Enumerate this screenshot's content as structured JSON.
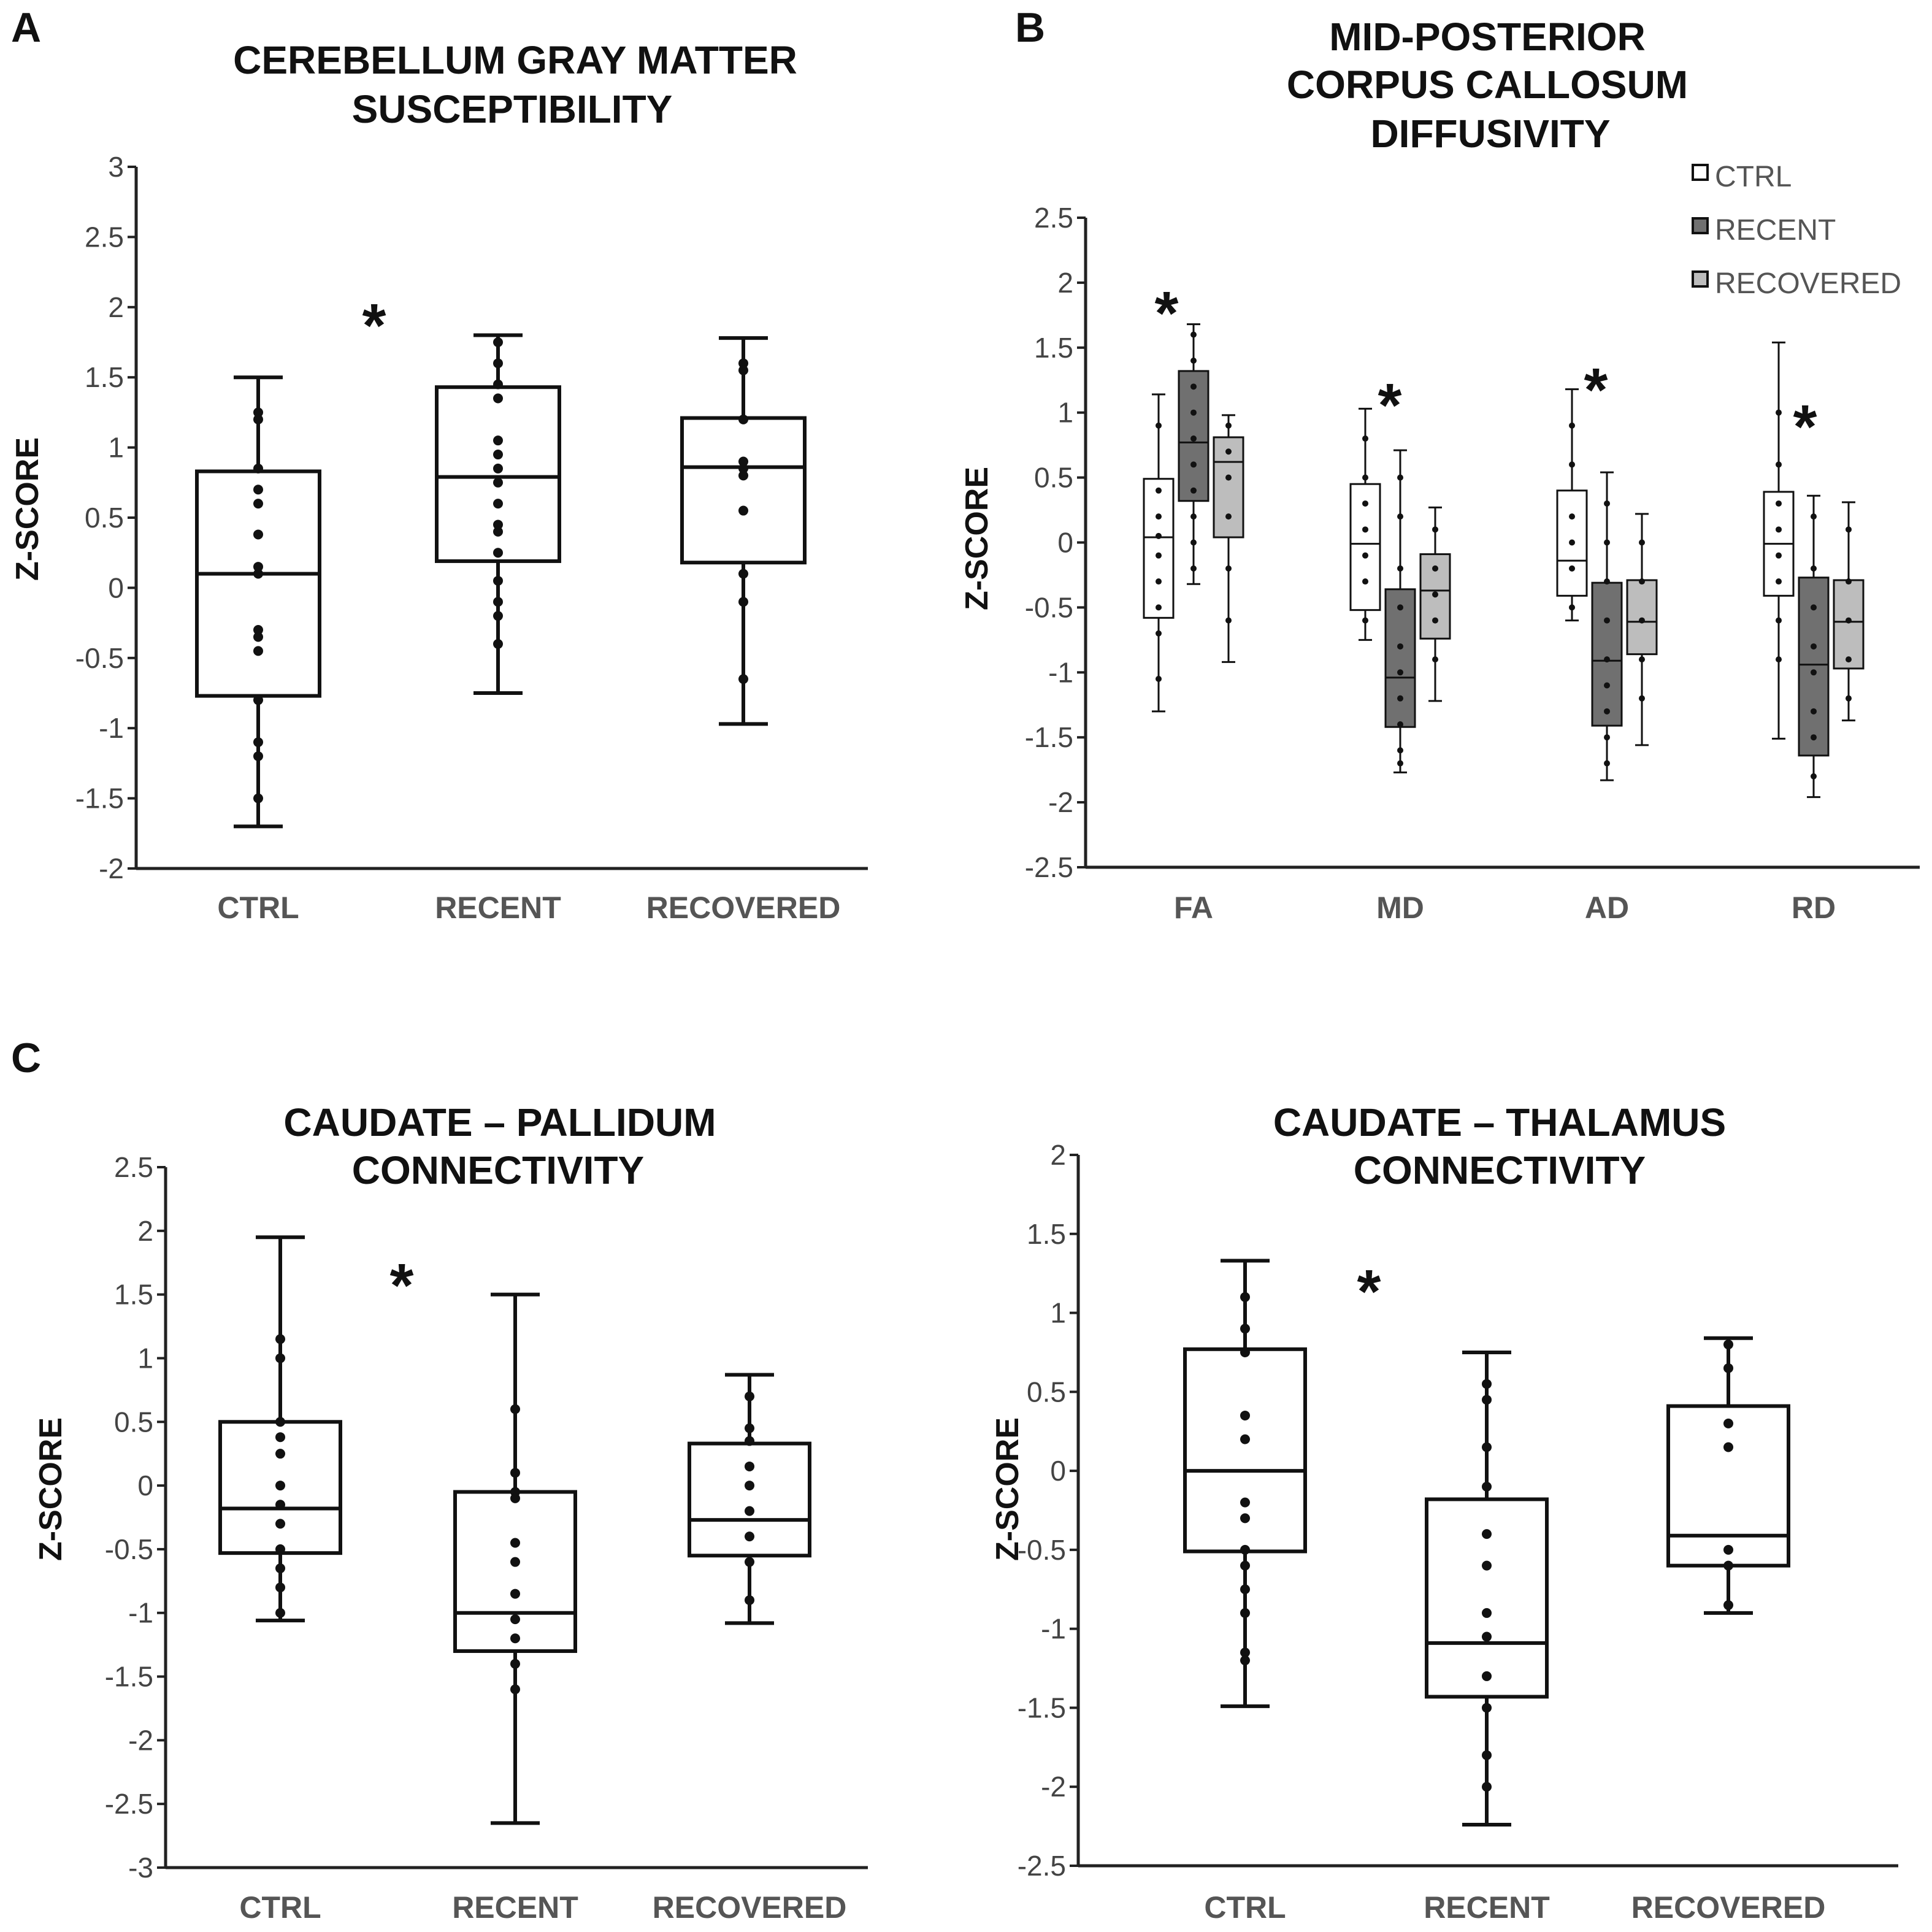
{
  "panels": [
    "A",
    "B",
    "C"
  ],
  "chart_data": [
    {
      "type": "box",
      "panel": "A",
      "title_lines": [
        "CEREBELLUM GRAY MATTER",
        "SUSCEPTIBILITY"
      ],
      "ylabel": "Z-SCORE",
      "ylim": [
        -2,
        3
      ],
      "yticks": [
        3,
        2.5,
        2,
        1.5,
        1,
        0.5,
        0,
        -0.5,
        -1,
        -1.5,
        -2
      ],
      "ytick_labels": [
        "3",
        "2.5",
        "2",
        "1.5",
        "1",
        "0.5",
        "0",
        "-0.5",
        "-1",
        "-1.5",
        "-2"
      ],
      "categories": [
        "CTRL",
        "RECENT",
        "RECOVERED"
      ],
      "significance": [
        "*"
      ],
      "boxes": [
        {
          "min": -1.7,
          "q1": -0.77,
          "median": 0.1,
          "q3": 0.83,
          "max": 1.5,
          "points": [
            1.25,
            1.2,
            0.85,
            0.7,
            0.6,
            0.38,
            0.15,
            0.1,
            -0.3,
            -0.35,
            -0.45,
            -0.8,
            -1.1,
            -1.2,
            -1.5
          ]
        },
        {
          "min": -0.75,
          "q1": 0.19,
          "median": 0.79,
          "q3": 1.43,
          "max": 1.8,
          "points": [
            1.75,
            1.6,
            1.45,
            1.35,
            1.05,
            0.95,
            0.85,
            0.75,
            0.6,
            0.45,
            0.4,
            0.25,
            0.05,
            -0.1,
            -0.2,
            -0.4
          ]
        },
        {
          "min": -0.97,
          "q1": 0.18,
          "median": 0.86,
          "q3": 1.21,
          "max": 1.78,
          "points": [
            1.6,
            1.55,
            1.2,
            0.9,
            0.85,
            0.8,
            0.55,
            0.1,
            -0.1,
            -0.65
          ]
        }
      ]
    },
    {
      "type": "grouped-box",
      "panel": "B",
      "title_lines": [
        "MID-POSTERIOR",
        "CORPUS CALLOSUM",
        "DIFFUSIVITY"
      ],
      "ylabel": "Z-SCORE",
      "ylim": [
        -2.5,
        2.5
      ],
      "yticks": [
        2.5,
        2,
        1.5,
        1,
        0.5,
        0,
        -0.5,
        -1,
        -1.5,
        -2,
        -2.5
      ],
      "ytick_labels": [
        "2.5",
        "2",
        "1.5",
        "1",
        "0.5",
        "0",
        "-0.5",
        "-1",
        "-1.5",
        "-2",
        "-2.5"
      ],
      "categories": [
        "FA",
        "MD",
        "AD",
        "RD"
      ],
      "legend": [
        "CTRL",
        "RECENT",
        "RECOVERED"
      ],
      "series_colors": [
        "#ffffff",
        "#707070",
        "#bdbdbd"
      ],
      "significance": [
        "*",
        "*",
        "*",
        "*"
      ],
      "groups": [
        [
          {
            "min": -1.3,
            "q1": -0.58,
            "median": 0.04,
            "q3": 0.49,
            "max": 1.14,
            "points": [
              0.9,
              0.4,
              0.2,
              0.05,
              -0.1,
              -0.3,
              -0.5,
              -0.7,
              -1.05
            ]
          },
          {
            "min": -0.32,
            "q1": 0.32,
            "median": 0.77,
            "q3": 1.32,
            "max": 1.68,
            "points": [
              1.6,
              1.4,
              1.2,
              1.0,
              0.8,
              0.6,
              0.4,
              0.2,
              0.0,
              -0.2
            ]
          },
          {
            "min": -0.92,
            "q1": 0.04,
            "median": 0.62,
            "q3": 0.81,
            "max": 0.98,
            "points": [
              0.9,
              0.7,
              0.5,
              0.2,
              -0.2,
              -0.6
            ]
          }
        ],
        [
          {
            "min": -0.75,
            "q1": -0.52,
            "median": -0.01,
            "q3": 0.45,
            "max": 1.03,
            "points": [
              0.8,
              0.5,
              0.3,
              0.1,
              -0.1,
              -0.3,
              -0.6
            ]
          },
          {
            "min": -1.77,
            "q1": -1.42,
            "median": -1.04,
            "q3": -0.36,
            "max": 0.71,
            "points": [
              0.5,
              0.2,
              -0.2,
              -0.5,
              -0.8,
              -1.0,
              -1.2,
              -1.4,
              -1.6,
              -1.7
            ]
          },
          {
            "min": -1.22,
            "q1": -0.74,
            "median": -0.37,
            "q3": -0.09,
            "max": 0.27,
            "points": [
              0.1,
              -0.2,
              -0.4,
              -0.6,
              -0.9
            ]
          }
        ],
        [
          {
            "min": -0.6,
            "q1": -0.41,
            "median": -0.14,
            "q3": 0.4,
            "max": 1.18,
            "points": [
              0.9,
              0.6,
              0.2,
              0.0,
              -0.2,
              -0.5
            ]
          },
          {
            "min": -1.83,
            "q1": -1.41,
            "median": -0.91,
            "q3": -0.31,
            "max": 0.54,
            "points": [
              0.3,
              0.0,
              -0.3,
              -0.6,
              -0.9,
              -1.1,
              -1.3,
              -1.5,
              -1.7
            ]
          },
          {
            "min": -1.56,
            "q1": -0.86,
            "median": -0.61,
            "q3": -0.29,
            "max": 0.22,
            "points": [
              0.0,
              -0.3,
              -0.6,
              -0.9,
              -1.2
            ]
          }
        ],
        [
          {
            "min": -1.51,
            "q1": -0.41,
            "median": -0.01,
            "q3": 0.39,
            "max": 1.54,
            "points": [
              1.0,
              0.6,
              0.3,
              0.1,
              -0.1,
              -0.3,
              -0.6,
              -0.9
            ]
          },
          {
            "min": -1.96,
            "q1": -1.64,
            "median": -0.94,
            "q3": -0.27,
            "max": 0.36,
            "points": [
              0.2,
              -0.2,
              -0.5,
              -0.8,
              -1.0,
              -1.3,
              -1.5,
              -1.8
            ]
          },
          {
            "min": -1.37,
            "q1": -0.97,
            "median": -0.61,
            "q3": -0.29,
            "max": 0.31,
            "points": [
              0.1,
              -0.3,
              -0.6,
              -0.9,
              -1.2
            ]
          }
        ]
      ]
    },
    {
      "type": "box",
      "panel": "C",
      "title_lines": [
        "CAUDATE – PALLIDUM",
        "CONNECTIVITY"
      ],
      "ylabel": "Z-SCORE",
      "ylim": [
        -3,
        2.5
      ],
      "yticks": [
        2.5,
        2,
        1.5,
        1,
        0.5,
        0,
        -0.5,
        -1,
        -1.5,
        -2,
        -2.5,
        -3
      ],
      "ytick_labels": [
        "2.5",
        "2",
        "1.5",
        "1",
        "0.5",
        "0",
        "-0.5",
        "-1",
        "-1.5",
        "-2",
        "-2.5",
        "-3"
      ],
      "categories": [
        "CTRL",
        "RECENT",
        "RECOVERED"
      ],
      "significance": [
        "*"
      ],
      "boxes": [
        {
          "min": -1.06,
          "q1": -0.53,
          "median": -0.18,
          "q3": 0.5,
          "max": 1.95,
          "points": [
            1.15,
            1.0,
            0.5,
            0.38,
            0.25,
            0.0,
            -0.15,
            -0.3,
            -0.5,
            -0.65,
            -0.8,
            -1.0
          ]
        },
        {
          "min": -2.65,
          "q1": -1.3,
          "median": -1.0,
          "q3": -0.05,
          "max": 1.5,
          "points": [
            0.6,
            0.1,
            -0.05,
            -0.1,
            -0.45,
            -0.6,
            -0.85,
            -1.05,
            -1.2,
            -1.4,
            -1.6
          ]
        },
        {
          "min": -1.08,
          "q1": -0.55,
          "median": -0.27,
          "q3": 0.33,
          "max": 0.87,
          "points": [
            0.7,
            0.45,
            0.35,
            0.15,
            0.0,
            -0.2,
            -0.4,
            -0.6,
            -0.9
          ]
        }
      ]
    },
    {
      "type": "box",
      "panel": "C",
      "title_lines": [
        "CAUDATE – THALAMUS",
        "CONNECTIVITY"
      ],
      "ylabel": "Z-SCORE",
      "ylim": [
        -2.5,
        2
      ],
      "yticks": [
        2,
        1.5,
        1,
        0.5,
        0,
        -0.5,
        -1,
        -1.5,
        -2,
        -2.5
      ],
      "ytick_labels": [
        "2",
        "1.5",
        "1",
        "0.5",
        "0",
        "-0.5",
        "-1",
        "-1.5",
        "-2",
        "-2.5"
      ],
      "categories": [
        "CTRL",
        "RECENT",
        "RECOVERED"
      ],
      "significance": [
        "*"
      ],
      "boxes": [
        {
          "min": -1.49,
          "q1": -0.51,
          "median": 0.0,
          "q3": 0.77,
          "max": 1.33,
          "points": [
            1.1,
            0.9,
            0.75,
            0.35,
            0.2,
            -0.2,
            -0.3,
            -0.5,
            -0.6,
            -0.75,
            -0.9,
            -1.15,
            -1.2
          ]
        },
        {
          "min": -2.24,
          "q1": -1.43,
          "median": -1.09,
          "q3": -0.18,
          "max": 0.75,
          "points": [
            0.55,
            0.45,
            0.15,
            -0.1,
            -0.4,
            -0.6,
            -0.9,
            -1.05,
            -1.3,
            -1.5,
            -1.8,
            -2.0
          ]
        },
        {
          "min": -0.9,
          "q1": -0.6,
          "median": -0.41,
          "q3": 0.41,
          "max": 0.84,
          "points": [
            0.8,
            0.65,
            0.3,
            0.15,
            -0.5,
            -0.6,
            -0.85
          ]
        }
      ]
    }
  ]
}
